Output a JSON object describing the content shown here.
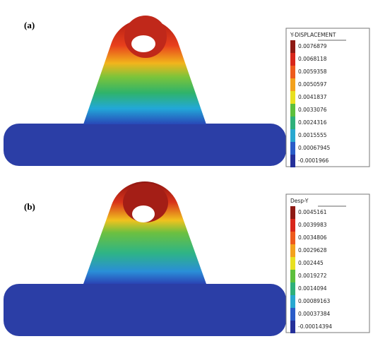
{
  "panels": [
    {
      "label": "(a)",
      "legend": {
        "title": "Y-DISPLACEMENT",
        "values": [
          "0.0076879",
          "0.0068118",
          "0.0059358",
          "0.0050597",
          "0.0041837",
          "0.0033076",
          "0.0024316",
          "0.0015555",
          "0.00067945",
          "-0.0001966"
        ]
      }
    },
    {
      "label": "(b)",
      "legend": {
        "title": "Desp-Y",
        "values": [
          "0.0045161",
          "0.0039983",
          "0.0034806",
          "0.0029628",
          "0.002445",
          "0.0019272",
          "0.0014094",
          "0.00089163",
          "0.00037384",
          "-0.00014394"
        ]
      }
    }
  ]
}
